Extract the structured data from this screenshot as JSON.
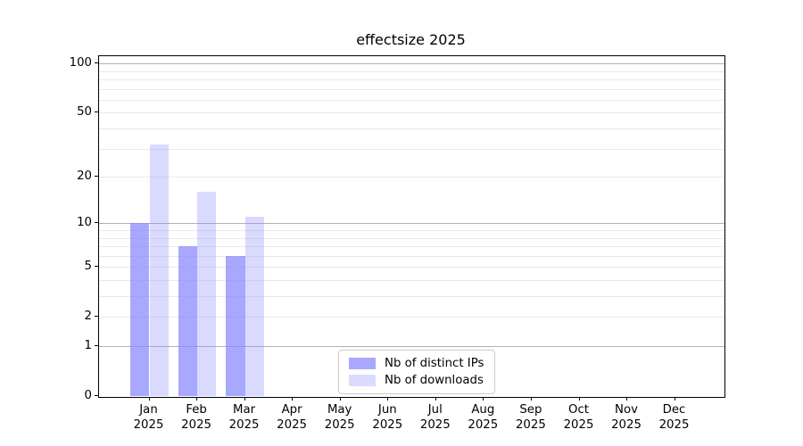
{
  "chart_data": {
    "type": "bar",
    "title": "effectsize 2025",
    "year_label": "2025",
    "categories": [
      "Jan 2025",
      "Feb 2025",
      "Mar 2025",
      "Apr 2025",
      "May 2025",
      "Jun 2025",
      "Jul 2025",
      "Aug 2025",
      "Sep 2025",
      "Oct 2025",
      "Nov 2025",
      "Dec 2025"
    ],
    "months": [
      "Jan",
      "Feb",
      "Mar",
      "Apr",
      "May",
      "Jun",
      "Jul",
      "Aug",
      "Sep",
      "Oct",
      "Nov",
      "Dec"
    ],
    "series": [
      {
        "name": "Nb of distinct IPs",
        "color": "#8888ff",
        "alpha": 0.73,
        "values": [
          10,
          7,
          6,
          0,
          0,
          0,
          0,
          0,
          0,
          0,
          0,
          0
        ]
      },
      {
        "name": "Nb of downloads",
        "color": "#8888ff",
        "alpha": 0.31,
        "values": [
          32,
          16,
          11,
          0,
          0,
          0,
          0,
          0,
          0,
          0,
          0,
          0
        ]
      }
    ],
    "y_axis": {
      "scale": "log1p",
      "tick_values": [
        0,
        1,
        2,
        5,
        10,
        20,
        50,
        100
      ],
      "major_gridlines": [
        1,
        10,
        100
      ],
      "minor_gridlines": [
        2,
        3,
        4,
        5,
        6,
        7,
        8,
        9,
        20,
        30,
        40,
        50,
        60,
        70,
        80,
        90
      ],
      "ylim": [
        0,
        111
      ]
    },
    "legend_position": "lower center",
    "grid": true,
    "colors": {
      "major_grid": "#b2b2b2",
      "minor_grid": "#e9e9e9",
      "spine": "#000000",
      "text": "#000000",
      "legend_border": "#cccccc",
      "background": "#ffffff"
    }
  }
}
